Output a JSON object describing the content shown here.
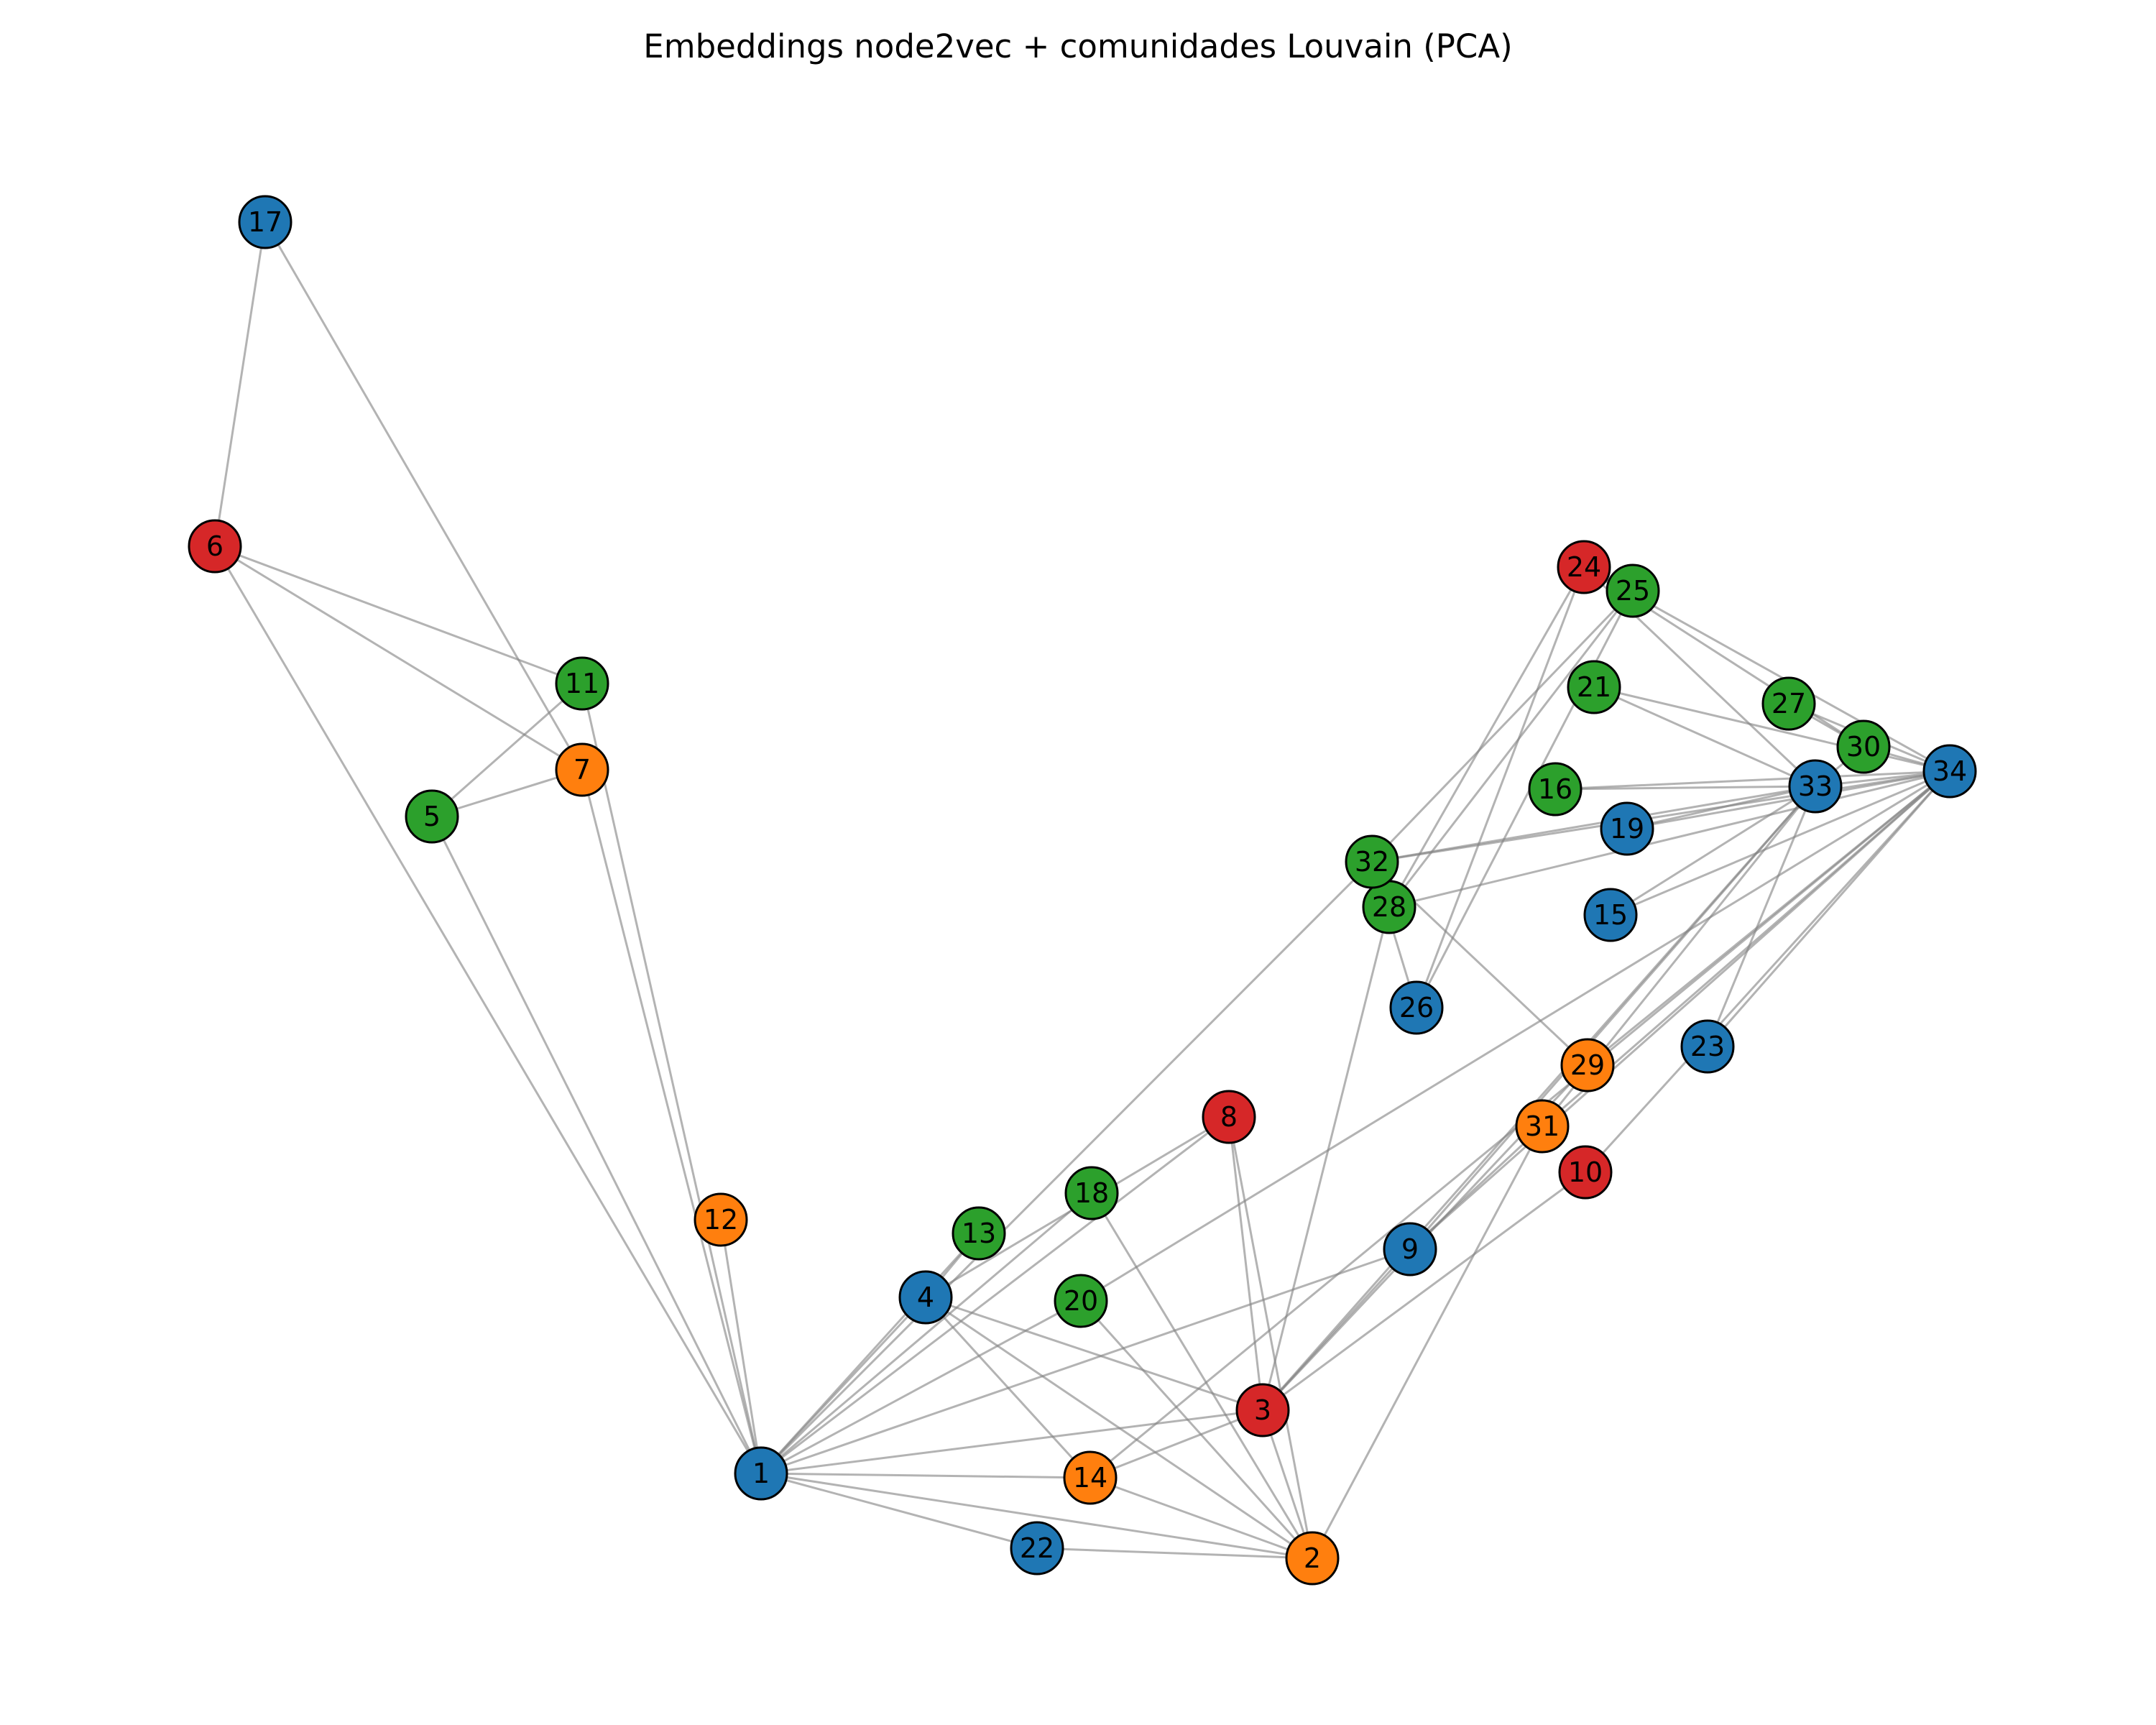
{
  "title": "Embeddings node2vec + comunidades Louvain (PCA)",
  "communities": {
    "blue": "#1f77b4",
    "orange": "#ff7f0e",
    "green": "#2ca02c",
    "red": "#d62728"
  },
  "edge_color": "#808080",
  "node_outline": "#000000",
  "nodes": [
    {
      "id": "1",
      "community": "blue"
    },
    {
      "id": "2",
      "community": "orange"
    },
    {
      "id": "3",
      "community": "red"
    },
    {
      "id": "4",
      "community": "blue"
    },
    {
      "id": "5",
      "community": "green"
    },
    {
      "id": "6",
      "community": "red"
    },
    {
      "id": "7",
      "community": "orange"
    },
    {
      "id": "8",
      "community": "red"
    },
    {
      "id": "9",
      "community": "blue"
    },
    {
      "id": "10",
      "community": "red"
    },
    {
      "id": "11",
      "community": "green"
    },
    {
      "id": "12",
      "community": "orange"
    },
    {
      "id": "13",
      "community": "green"
    },
    {
      "id": "14",
      "community": "orange"
    },
    {
      "id": "15",
      "community": "blue"
    },
    {
      "id": "16",
      "community": "green"
    },
    {
      "id": "17",
      "community": "blue"
    },
    {
      "id": "18",
      "community": "green"
    },
    {
      "id": "19",
      "community": "blue"
    },
    {
      "id": "20",
      "community": "green"
    },
    {
      "id": "21",
      "community": "green"
    },
    {
      "id": "22",
      "community": "blue"
    },
    {
      "id": "23",
      "community": "blue"
    },
    {
      "id": "24",
      "community": "red"
    },
    {
      "id": "25",
      "community": "green"
    },
    {
      "id": "26",
      "community": "blue"
    },
    {
      "id": "27",
      "community": "green"
    },
    {
      "id": "28",
      "community": "green"
    },
    {
      "id": "29",
      "community": "orange"
    },
    {
      "id": "30",
      "community": "green"
    },
    {
      "id": "31",
      "community": "orange"
    },
    {
      "id": "32",
      "community": "green"
    },
    {
      "id": "33",
      "community": "blue"
    },
    {
      "id": "34",
      "community": "blue"
    }
  ],
  "edges": [
    [
      "1",
      "2"
    ],
    [
      "1",
      "3"
    ],
    [
      "1",
      "4"
    ],
    [
      "1",
      "5"
    ],
    [
      "1",
      "6"
    ],
    [
      "1",
      "7"
    ],
    [
      "1",
      "8"
    ],
    [
      "1",
      "9"
    ],
    [
      "1",
      "11"
    ],
    [
      "1",
      "12"
    ],
    [
      "1",
      "13"
    ],
    [
      "1",
      "14"
    ],
    [
      "1",
      "18"
    ],
    [
      "1",
      "20"
    ],
    [
      "1",
      "22"
    ],
    [
      "1",
      "32"
    ],
    [
      "2",
      "3"
    ],
    [
      "2",
      "4"
    ],
    [
      "2",
      "8"
    ],
    [
      "2",
      "14"
    ],
    [
      "2",
      "18"
    ],
    [
      "2",
      "20"
    ],
    [
      "2",
      "22"
    ],
    [
      "2",
      "31"
    ],
    [
      "3",
      "4"
    ],
    [
      "3",
      "8"
    ],
    [
      "3",
      "9"
    ],
    [
      "3",
      "10"
    ],
    [
      "3",
      "14"
    ],
    [
      "3",
      "28"
    ],
    [
      "3",
      "29"
    ],
    [
      "3",
      "33"
    ],
    [
      "4",
      "8"
    ],
    [
      "4",
      "13"
    ],
    [
      "4",
      "14"
    ],
    [
      "5",
      "7"
    ],
    [
      "5",
      "11"
    ],
    [
      "6",
      "7"
    ],
    [
      "6",
      "11"
    ],
    [
      "6",
      "17"
    ],
    [
      "7",
      "17"
    ],
    [
      "9",
      "31"
    ],
    [
      "9",
      "33"
    ],
    [
      "9",
      "34"
    ],
    [
      "10",
      "34"
    ],
    [
      "14",
      "34"
    ],
    [
      "15",
      "33"
    ],
    [
      "15",
      "34"
    ],
    [
      "16",
      "33"
    ],
    [
      "16",
      "34"
    ],
    [
      "19",
      "33"
    ],
    [
      "19",
      "34"
    ],
    [
      "20",
      "34"
    ],
    [
      "21",
      "33"
    ],
    [
      "21",
      "34"
    ],
    [
      "23",
      "33"
    ],
    [
      "23",
      "34"
    ],
    [
      "24",
      "26"
    ],
    [
      "24",
      "28"
    ],
    [
      "24",
      "30"
    ],
    [
      "24",
      "33"
    ],
    [
      "24",
      "34"
    ],
    [
      "25",
      "26"
    ],
    [
      "25",
      "28"
    ],
    [
      "25",
      "32"
    ],
    [
      "26",
      "32"
    ],
    [
      "27",
      "30"
    ],
    [
      "27",
      "34"
    ],
    [
      "28",
      "34"
    ],
    [
      "29",
      "32"
    ],
    [
      "29",
      "34"
    ],
    [
      "30",
      "33"
    ],
    [
      "30",
      "34"
    ],
    [
      "31",
      "33"
    ],
    [
      "31",
      "34"
    ],
    [
      "32",
      "33"
    ],
    [
      "32",
      "34"
    ],
    [
      "33",
      "34"
    ]
  ]
}
